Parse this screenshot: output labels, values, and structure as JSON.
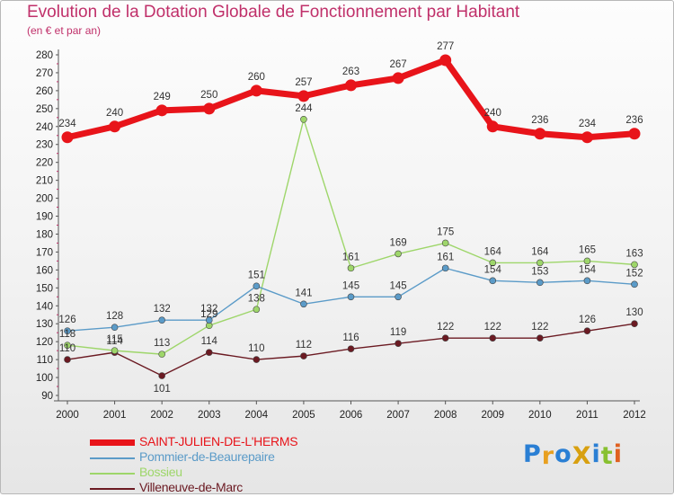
{
  "title": "Evolution de la Dotation Globale de Fonctionnement par Habitant",
  "subtitle": "(en € et par an)",
  "logo": {
    "text": "ProXiti",
    "letter_colors": [
      "#2a7fd4",
      "#e8a020",
      "#2a7fd4",
      "#d8a010",
      "#2a7fd4",
      "#88c030",
      "#e06020"
    ]
  },
  "chart_data": {
    "type": "line",
    "title": "Evolution de la Dotation Globale de Fonctionnement par Habitant",
    "subtitle": "(en € et par an)",
    "xlabel": "",
    "ylabel": "",
    "ylim": [
      90,
      280
    ],
    "ytick_step": 10,
    "grid": false,
    "legend_position": "bottom",
    "x": [
      "2000",
      "2001",
      "2002",
      "2003",
      "2004",
      "2005",
      "2006",
      "2007",
      "2008",
      "2009",
      "2010",
      "2011",
      "2012"
    ],
    "series": [
      {
        "name": "SAINT-JULIEN-DE-L'HERMS",
        "color": "#e8141a",
        "values": [
          234,
          240,
          249,
          250,
          260,
          257,
          263,
          267,
          277,
          240,
          236,
          234,
          236
        ]
      },
      {
        "name": "Pommier-de-Beaurepaire",
        "color": "#5b9bc8",
        "values": [
          126,
          128,
          132,
          132,
          151,
          141,
          145,
          145,
          161,
          154,
          153,
          154,
          152
        ]
      },
      {
        "name": "Bossieu",
        "color": "#9ed66a",
        "values": [
          118,
          115,
          113,
          129,
          138,
          244,
          161,
          169,
          175,
          164,
          164,
          165,
          163
        ]
      },
      {
        "name": "Villeneuve-de-Marc",
        "color": "#6b1a22",
        "values": [
          110,
          114,
          101,
          114,
          110,
          112,
          116,
          119,
          122,
          122,
          122,
          126,
          130
        ]
      }
    ]
  }
}
